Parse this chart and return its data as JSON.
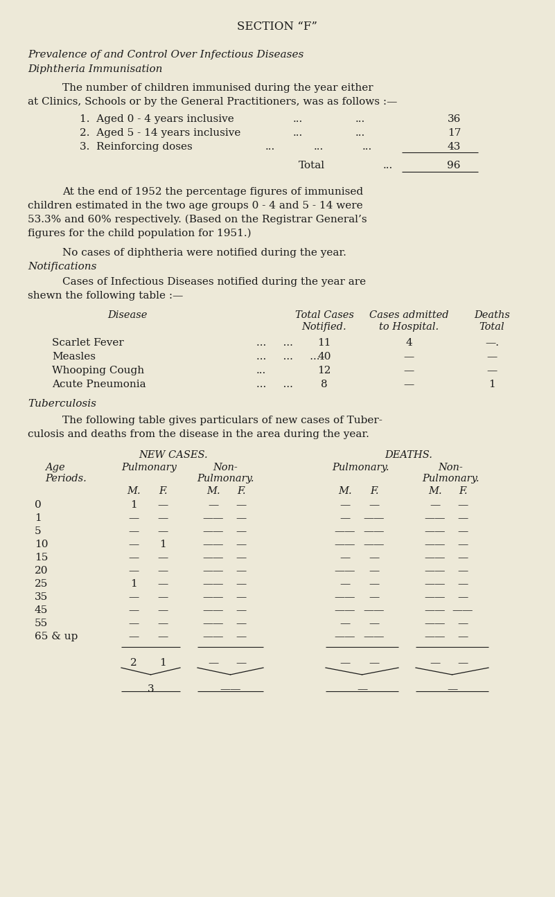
{
  "bg_color": "#ede9d8",
  "text_color": "#1a1a1a",
  "title": "SECTION “F”",
  "section_title1": "Prevalence of and Control Over Infectious Diseases",
  "section_title2": "Diphtheria Immunisation",
  "age_periods": [
    "0",
    "1",
    "5",
    "10",
    "15",
    "20",
    "25",
    "35",
    "45",
    "55",
    "65 & up"
  ]
}
